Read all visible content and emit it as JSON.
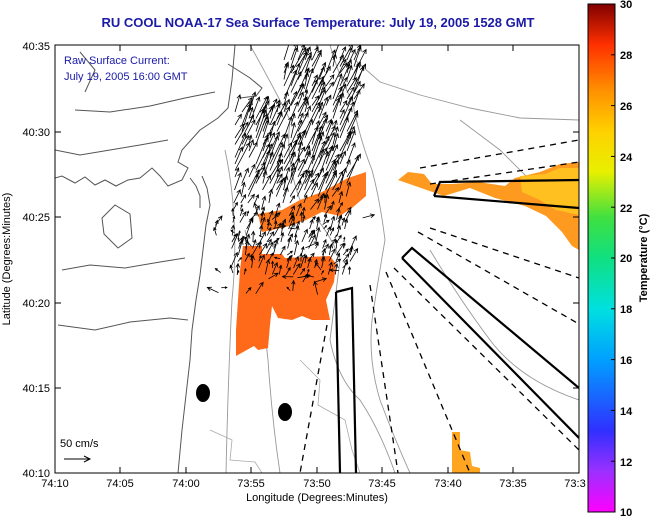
{
  "chart_data": {
    "type": "heatmap",
    "title": "RU COOL  NOAA-17  Sea Surface Temperature:  July 19, 2005 1528 GMT",
    "inset_title": "Raw Surface Current:",
    "inset_time": "July 19, 2005 16:00 GMT",
    "xlabel": "Longitude (Degrees:Minutes)",
    "ylabel": "Latitude (Degrees:Minutes)",
    "x_ticks": [
      "74:10",
      "74:05",
      "74:00",
      "73:55",
      "73:50",
      "73:45",
      "73:40",
      "73:35",
      "73:3"
    ],
    "y_ticks": [
      "40:10",
      "40:15",
      "40:20",
      "40:25",
      "40:30",
      "40:35"
    ],
    "xlim": [
      -74.1667,
      -73.5
    ],
    "ylim": [
      40.1667,
      40.5833
    ],
    "colorbar": {
      "label": "Temperature (°C)",
      "range": [
        10,
        30
      ],
      "ticks": [
        "10",
        "12",
        "14",
        "16",
        "18",
        "20",
        "22",
        "24",
        "26",
        "28",
        "30"
      ]
    },
    "scale_label": "50 cm/s",
    "sst_patches": [
      {
        "name": "raritan-bay-warm-patch",
        "approx_temp_c": 26
      },
      {
        "name": "apex-warm-band",
        "approx_temp_c": 26
      },
      {
        "name": "offshore-warm-patch",
        "approx_temp_c": 25
      },
      {
        "name": "southeast-small-patch",
        "approx_temp_c": 25
      }
    ]
  }
}
